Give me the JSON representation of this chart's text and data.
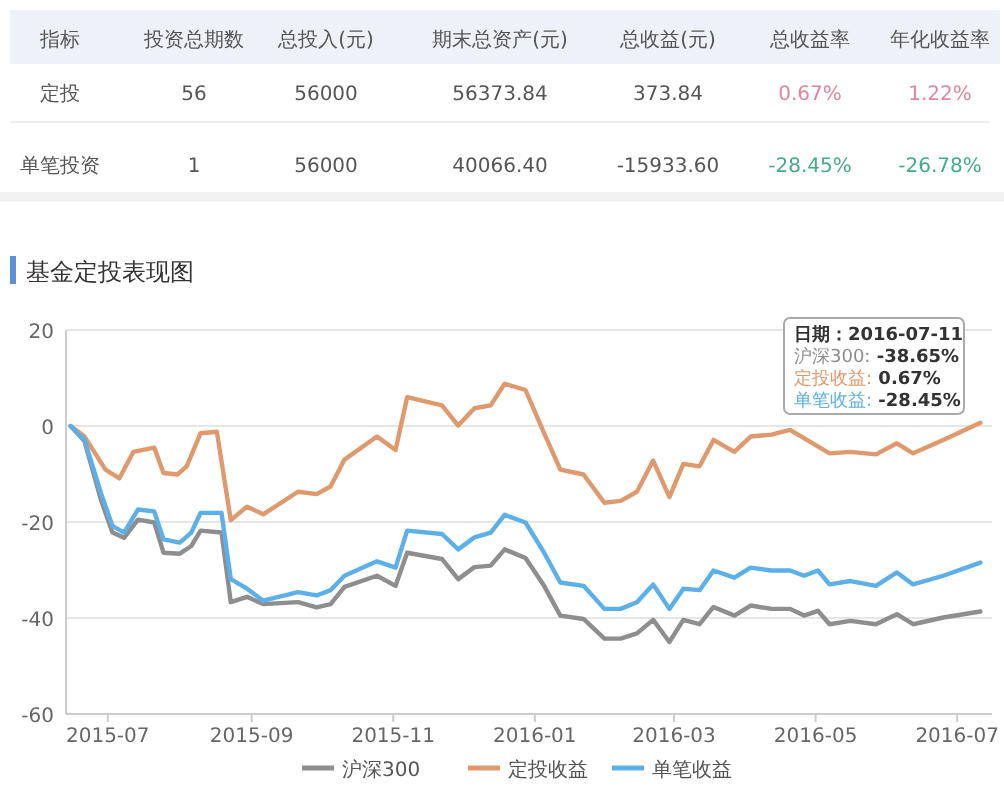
{
  "chart_data": [
    {
      "type": "other",
      "categories": [
        "指标",
        "投资总期数",
        "总投入(元)",
        "期末总资产(元)",
        "总收益(元)",
        "总收益率",
        "年化收益率"
      ],
      "y_categories": [
        "定投",
        "单笔投资"
      ],
      "cell_labels": [
        [
          "56",
          "56000",
          "56373.84",
          "373.84",
          "0.67%",
          "1.22%"
        ],
        [
          "1",
          "56000",
          "40066.40",
          "-15933.60",
          "-28.45%",
          "-26.78%"
        ]
      ]
    },
    {
      "type": "line",
      "title": "基金定投表现图",
      "xlim": [
        "2015-06-13",
        "2016-07-16"
      ],
      "ylim": [
        -60,
        20
      ],
      "xticks": [
        {
          "value": "2015-07-01",
          "label": "2015-07"
        },
        {
          "value": "2015-09-01",
          "label": "2015-09"
        },
        {
          "value": "2015-11-01",
          "label": "2015-11"
        },
        {
          "value": "2016-01-01",
          "label": "2016-01"
        },
        {
          "value": "2016-03-01",
          "label": "2016-03"
        },
        {
          "value": "2016-05-01",
          "label": "2016-05"
        },
        {
          "value": "2016-07-01",
          "label": "2016-07"
        }
      ],
      "yticks": [
        -60,
        -40,
        -20,
        0,
        20
      ],
      "grid": "y",
      "legend": "bottom",
      "series": [
        {
          "name": "沪深300",
          "color": "#8e8e8e",
          "x": [
            "2015-06-15",
            "2015-06-21",
            "2015-06-28",
            "2015-07-03",
            "2015-07-08",
            "2015-07-14",
            "2015-07-21",
            "2015-07-25",
            "2015-08-01",
            "2015-08-06",
            "2015-08-10",
            "2015-08-19",
            "2015-08-23",
            "2015-08-30",
            "2015-09-06",
            "2015-09-21",
            "2015-09-29",
            "2015-10-05",
            "2015-10-11",
            "2015-10-25",
            "2015-11-02",
            "2015-11-07",
            "2015-11-22",
            "2015-11-29",
            "2015-12-06",
            "2015-12-13",
            "2015-12-19",
            "2015-12-28",
            "2016-01-05",
            "2016-01-12",
            "2016-01-22",
            "2016-01-31",
            "2016-02-07",
            "2016-02-14",
            "2016-02-21",
            "2016-02-28",
            "2016-03-05",
            "2016-03-12",
            "2016-03-18",
            "2016-03-27",
            "2016-04-03",
            "2016-04-12",
            "2016-04-20",
            "2016-04-26",
            "2016-05-02",
            "2016-05-07",
            "2016-05-16",
            "2016-05-27",
            "2016-06-05",
            "2016-06-12",
            "2016-06-25",
            "2016-07-11"
          ],
          "values": [
            0,
            -3.2,
            -15.3,
            -22.2,
            -23.3,
            -19.5,
            -20.1,
            -26.4,
            -26.6,
            -25,
            -21.8,
            -22.2,
            -36.7,
            -35.6,
            -37.1,
            -36.7,
            -37.8,
            -37.1,
            -33.5,
            -31.2,
            -33.3,
            -26.4,
            -27.7,
            -31.9,
            -29.4,
            -29.1,
            -25.7,
            -27.5,
            -33.3,
            -39.5,
            -40.2,
            -44.3,
            -44.3,
            -43.2,
            -40.4,
            -45,
            -40.4,
            -41.3,
            -37.7,
            -39.5,
            -37.4,
            -38.1,
            -38.1,
            -39.5,
            -38.5,
            -41.3,
            -40.6,
            -41.3,
            -39.2,
            -41.3,
            -39.9,
            -38.65
          ]
        },
        {
          "name": "定投收益",
          "color": "#e0996c",
          "x": [
            "2015-06-15",
            "2015-06-21",
            "2015-06-30",
            "2015-07-06",
            "2015-07-12",
            "2015-07-21",
            "2015-07-25",
            "2015-07-31",
            "2015-08-04",
            "2015-08-10",
            "2015-08-17",
            "2015-08-23",
            "2015-08-30",
            "2015-09-06",
            "2015-09-21",
            "2015-09-29",
            "2015-10-05",
            "2015-10-11",
            "2015-10-25",
            "2015-11-02",
            "2015-11-07",
            "2015-11-22",
            "2015-11-29",
            "2015-12-06",
            "2015-12-13",
            "2015-12-19",
            "2015-12-28",
            "2016-01-05",
            "2016-01-12",
            "2016-01-22",
            "2016-01-31",
            "2016-02-07",
            "2016-02-14",
            "2016-02-21",
            "2016-02-28",
            "2016-03-05",
            "2016-03-12",
            "2016-03-18",
            "2016-03-27",
            "2016-04-03",
            "2016-04-12",
            "2016-04-20",
            "2016-05-07",
            "2016-05-16",
            "2016-05-27",
            "2016-06-05",
            "2016-06-12",
            "2016-06-25",
            "2016-07-11"
          ],
          "values": [
            0,
            -2.2,
            -9.1,
            -10.9,
            -5.4,
            -4.5,
            -9.8,
            -10.1,
            -8.4,
            -1.5,
            -1.2,
            -19.6,
            -16.8,
            -18.4,
            -13.7,
            -14.2,
            -12.6,
            -7,
            -2.2,
            -5,
            6,
            4.3,
            0.1,
            3.7,
            4.3,
            8.8,
            7.5,
            -1.5,
            -9.1,
            -10.1,
            -16,
            -15.6,
            -13.7,
            -7.2,
            -14.8,
            -7.9,
            -8.4,
            -2.9,
            -5.4,
            -2.2,
            -1.8,
            -0.8,
            -5.7,
            -5.4,
            -5.9,
            -3.6,
            -5.7,
            -2.9,
            0.67
          ]
        },
        {
          "name": "单笔收益",
          "color": "#5cb0ea",
          "x": [
            "2015-06-15",
            "2015-06-21",
            "2015-06-28",
            "2015-07-03",
            "2015-07-08",
            "2015-07-14",
            "2015-07-21",
            "2015-07-25",
            "2015-08-01",
            "2015-08-06",
            "2015-08-10",
            "2015-08-19",
            "2015-08-23",
            "2015-08-30",
            "2015-09-06",
            "2015-09-21",
            "2015-09-29",
            "2015-10-05",
            "2015-10-11",
            "2015-10-25",
            "2015-11-02",
            "2015-11-07",
            "2015-11-22",
            "2015-11-29",
            "2015-12-06",
            "2015-12-13",
            "2015-12-19",
            "2015-12-28",
            "2016-01-05",
            "2016-01-12",
            "2016-01-22",
            "2016-01-31",
            "2016-02-07",
            "2016-02-14",
            "2016-02-21",
            "2016-02-28",
            "2016-03-05",
            "2016-03-12",
            "2016-03-18",
            "2016-03-27",
            "2016-04-03",
            "2016-04-12",
            "2016-04-20",
            "2016-04-26",
            "2016-05-02",
            "2016-05-07",
            "2016-05-16",
            "2016-05-27",
            "2016-06-05",
            "2016-06-12",
            "2016-06-25",
            "2016-07-11"
          ],
          "values": [
            0,
            -2.9,
            -13.9,
            -20.8,
            -22.2,
            -17.4,
            -17.8,
            -23.6,
            -24.3,
            -22.2,
            -18.1,
            -18.1,
            -31.9,
            -33.9,
            -36.4,
            -34.6,
            -35.3,
            -34.2,
            -31.2,
            -28.2,
            -29.5,
            -21.8,
            -22.5,
            -25.7,
            -23.2,
            -22.2,
            -18.5,
            -20.1,
            -26.4,
            -32.6,
            -33.3,
            -38.1,
            -38.1,
            -36.7,
            -33,
            -38.1,
            -33.9,
            -34.2,
            -30.1,
            -31.6,
            -29.5,
            -30.1,
            -30.1,
            -31.2,
            -30.1,
            -33,
            -32.3,
            -33.3,
            -30.5,
            -33,
            -31.2,
            -28.45
          ]
        }
      ],
      "annotations": [
        "日期：2016-07-11",
        "沪深300: -38.65%",
        "定投收益: 0.67%",
        "单笔收益: -28.45%"
      ]
    }
  ]
}
